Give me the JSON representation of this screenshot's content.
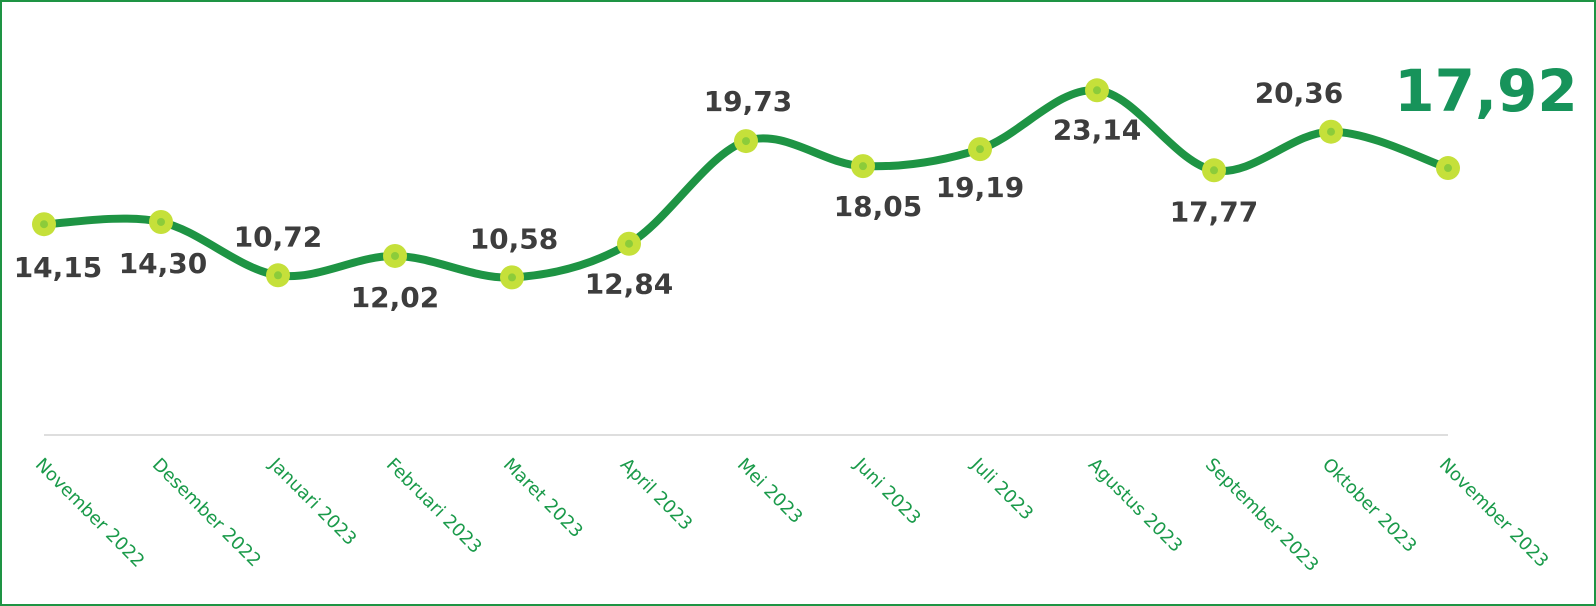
{
  "chart_data": {
    "type": "line",
    "categories": [
      "November 2022",
      "Desember 2022",
      "Januari 2023",
      "Februari 2023",
      "Maret 2023",
      "April 2023",
      "Mei 2023",
      "Juni 2023",
      "Juli 2023",
      "Agustus 2023",
      "September 2023",
      "Oktober 2023",
      "November 2023"
    ],
    "values": [
      14.15,
      14.3,
      10.72,
      12.02,
      10.58,
      12.84,
      19.73,
      18.05,
      19.19,
      23.14,
      17.77,
      20.36,
      17.92
    ],
    "value_labels": [
      "14,15",
      "14,30",
      "10,72",
      "12,02",
      "10,58",
      "12,84",
      "19,73",
      "18,05",
      "19,19",
      "23,14",
      "17,77",
      "20,36",
      "17,92"
    ],
    "color": "#1e9444",
    "marker_color": "#c5e03a",
    "ylim": [
      0,
      29
    ]
  }
}
